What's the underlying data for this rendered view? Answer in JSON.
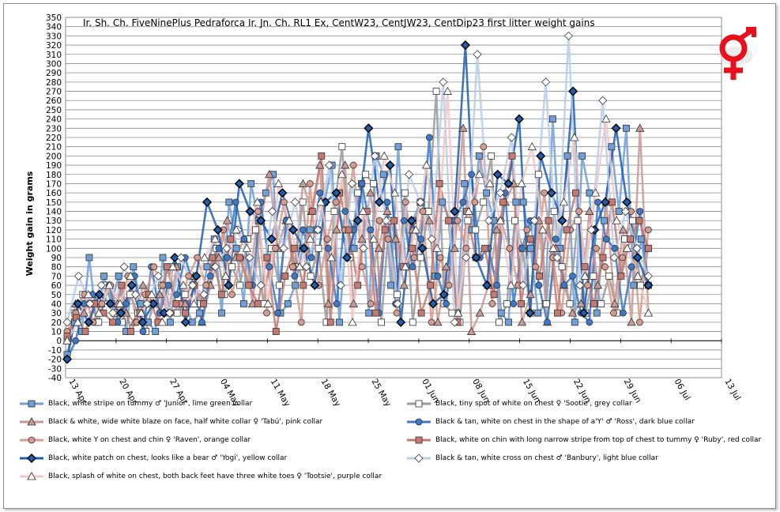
{
  "chart_data": {
    "type": "line",
    "title": "Ir. Sh. Ch. FiveNinePlus Pedraforca Ir. Jn. Ch. RL1 Ex, CentW23, CentJW23, CentDip23 first litter weight gains",
    "ylabel": "Weight gain in grams",
    "xlabel": "",
    "ylim": [
      -40,
      350
    ],
    "ytick_step": 10,
    "x_tick_labels": [
      "13 Apr",
      "20 Apr",
      "27 Apr",
      "04 May",
      "11 May",
      "18 May",
      "25 May",
      "01 Jun",
      "08 Jun",
      "15 Jun",
      "22 Jun",
      "29 Jun",
      "06 Jul",
      "13 Jul"
    ],
    "grid": true,
    "legend_position": "bottom",
    "series": [
      {
        "name": "Black, white stripe on tummy ♂ 'Junior', lime green collar",
        "color": "#6f9fd8",
        "marker": "square",
        "values": [
          -15,
          20,
          10,
          90,
          20,
          70,
          40,
          70,
          10,
          80,
          40,
          20,
          10,
          90,
          20,
          80,
          40,
          20,
          30,
          80,
          110,
          30,
          150,
          100,
          40,
          170,
          130,
          160,
          180,
          30,
          40,
          60,
          100,
          120,
          120,
          150,
          190,
          20,
          120,
          100,
          170,
          30,
          200,
          180,
          60,
          210,
          80,
          130,
          150,
          140,
          70,
          150,
          130,
          30,
          170,
          120,
          200,
          160,
          130,
          30,
          20,
          150,
          150,
          100,
          30,
          40,
          240,
          100,
          200,
          20,
          200,
          160,
          30,
          130,
          210,
          140,
          230,
          60,
          110,
          60
        ]
      },
      {
        "name": "Black, tiny spot of white on chest ♀ 'Sootie', grey collar",
        "color": "#9a9a9a",
        "marker": "square-hollow",
        "values": [
          0,
          30,
          50,
          40,
          20,
          60,
          30,
          20,
          50,
          30,
          10,
          40,
          60,
          80,
          30,
          50,
          60,
          40,
          60,
          100,
          50,
          80,
          60,
          110,
          120,
          40,
          100,
          60,
          130,
          80,
          150,
          70,
          100,
          20,
          140,
          210,
          90,
          160,
          180,
          170,
          20,
          130,
          50,
          160,
          20,
          90,
          140,
          270,
          40,
          30,
          20,
          130,
          120,
          150,
          200,
          20,
          40,
          130,
          100,
          30,
          180,
          40,
          140,
          80,
          40,
          130,
          30,
          70,
          40,
          70,
          30,
          110,
          130,
          60,
          100
        ]
      },
      {
        "name": "Black & white, wide white blaze on face, half white collar ♀ 'Tabú', pink collar",
        "color": "#c89a96",
        "marker": "triangle",
        "values": [
          0,
          40,
          30,
          50,
          40,
          60,
          40,
          30,
          20,
          60,
          40,
          50,
          30,
          80,
          40,
          70,
          20,
          60,
          90,
          130,
          90,
          110,
          40,
          130,
          180,
          100,
          130,
          80,
          170,
          140,
          190,
          40,
          120,
          190,
          40,
          110,
          160,
          100,
          140,
          110,
          60,
          120,
          150,
          130,
          20,
          80,
          100,
          230,
          10,
          30,
          60,
          120,
          150,
          170,
          20,
          50,
          130,
          20,
          100,
          60,
          30,
          40,
          140,
          60,
          150,
          40,
          120,
          20,
          230,
          30
        ]
      },
      {
        "name": "Black & tan, white on chest in the shape of a'Y' ♂ 'Ross', dark blue collar",
        "color": "#3b78c8",
        "marker": "circle",
        "values": [
          -20,
          0,
          40,
          50,
          30,
          60,
          20,
          40,
          70,
          10,
          80,
          30,
          60,
          50,
          90,
          60,
          20,
          70,
          100,
          90,
          150,
          110,
          60,
          150,
          80,
          30,
          130,
          70,
          120,
          90,
          160,
          100,
          40,
          140,
          120,
          170,
          120,
          30,
          150,
          40,
          130,
          80,
          110,
          220,
          70,
          40,
          130,
          150,
          180,
          90,
          100,
          60,
          160,
          40,
          100,
          130,
          60,
          20,
          110,
          60,
          70,
          30,
          20,
          150,
          110,
          100,
          30,
          80,
          140,
          60
        ]
      },
      {
        "name": "Black, white Y on chest and chin ♀ 'Raven', orange collar",
        "color": "#d69a8e",
        "marker": "circle",
        "values": [
          10,
          30,
          50,
          20,
          40,
          60,
          30,
          70,
          20,
          50,
          80,
          60,
          30,
          40,
          70,
          90,
          60,
          80,
          120,
          50,
          90,
          60,
          140,
          30,
          100,
          150,
          80,
          20,
          170,
          60,
          110,
          150,
          120,
          190,
          80,
          40,
          130,
          110,
          30,
          150,
          90,
          140,
          20,
          90,
          60,
          130,
          100,
          150,
          210,
          40,
          130,
          100,
          60,
          120,
          80,
          160,
          90,
          30,
          120,
          140,
          60,
          100,
          80,
          30,
          90,
          140,
          20,
          120
        ]
      },
      {
        "name": "Black, white on chin with long narrow stripe from top of chest to tummy ♀ 'Ruby', red collar",
        "color": "#c47a72",
        "marker": "square",
        "values": [
          5,
          25,
          10,
          40,
          30,
          20,
          60,
          10,
          30,
          50,
          20,
          80,
          40,
          30,
          60,
          40,
          90,
          50,
          110,
          90,
          60,
          40,
          90,
          10,
          70,
          100,
          60,
          140,
          200,
          20,
          160,
          120,
          60,
          140,
          30,
          120,
          130,
          80,
          100,
          30,
          60,
          170,
          130,
          20,
          140,
          90,
          100,
          50,
          150,
          200,
          40,
          110,
          70,
          130,
          30,
          120,
          160,
          80,
          40,
          90,
          150,
          70,
          110,
          130,
          100
        ]
      },
      {
        "name": "Black, white patch on chest, looks like a bear ♂ 'Yogi', yellow collar",
        "color": "#1f5fb0",
        "marker": "diamond",
        "values": [
          -20,
          40,
          20,
          50,
          40,
          30,
          60,
          20,
          40,
          30,
          90,
          20,
          70,
          150,
          120,
          60,
          170,
          140,
          130,
          110,
          160,
          120,
          100,
          60,
          150,
          160,
          90,
          130,
          230,
          150,
          190,
          20,
          130,
          100,
          40,
          50,
          140,
          320,
          90,
          60,
          180,
          170,
          240,
          30,
          200,
          160,
          130,
          270,
          30,
          120,
          150,
          230,
          150,
          90,
          60
        ]
      },
      {
        "name": "Black & tan, white cross on chest ♂ 'Banbury', light blue collar",
        "color": "#b8cde8",
        "marker": "diamond-hollow",
        "values": [
          20,
          70,
          40,
          60,
          30,
          80,
          50,
          40,
          70,
          30,
          90,
          60,
          50,
          80,
          100,
          120,
          90,
          60,
          140,
          100,
          150,
          80,
          120,
          190,
          60,
          170,
          100,
          200,
          130,
          40,
          180,
          150,
          110,
          280,
          20,
          90,
          310,
          130,
          160,
          220,
          60,
          130,
          280,
          90,
          330,
          60,
          120,
          260,
          90,
          140,
          100,
          70
        ]
      },
      {
        "name": "Black, splash of white on chest, both back feet have three white toes ♀ 'Tootsie', purple collar",
        "color": "#f0c8c6",
        "marker": "triangle-hollow",
        "values": [
          0,
          20,
          50,
          30,
          60,
          40,
          70,
          30,
          50,
          20,
          80,
          60,
          40,
          90,
          110,
          70,
          120,
          100,
          150,
          40,
          170,
          130,
          80,
          110,
          150,
          90,
          180,
          20,
          140,
          110,
          200,
          160,
          80,
          120,
          190,
          100,
          270,
          30,
          140,
          180,
          170,
          130,
          60,
          170,
          210,
          120,
          100,
          150,
          220,
          70,
          160,
          240,
          130,
          100,
          70,
          30
        ]
      }
    ]
  }
}
